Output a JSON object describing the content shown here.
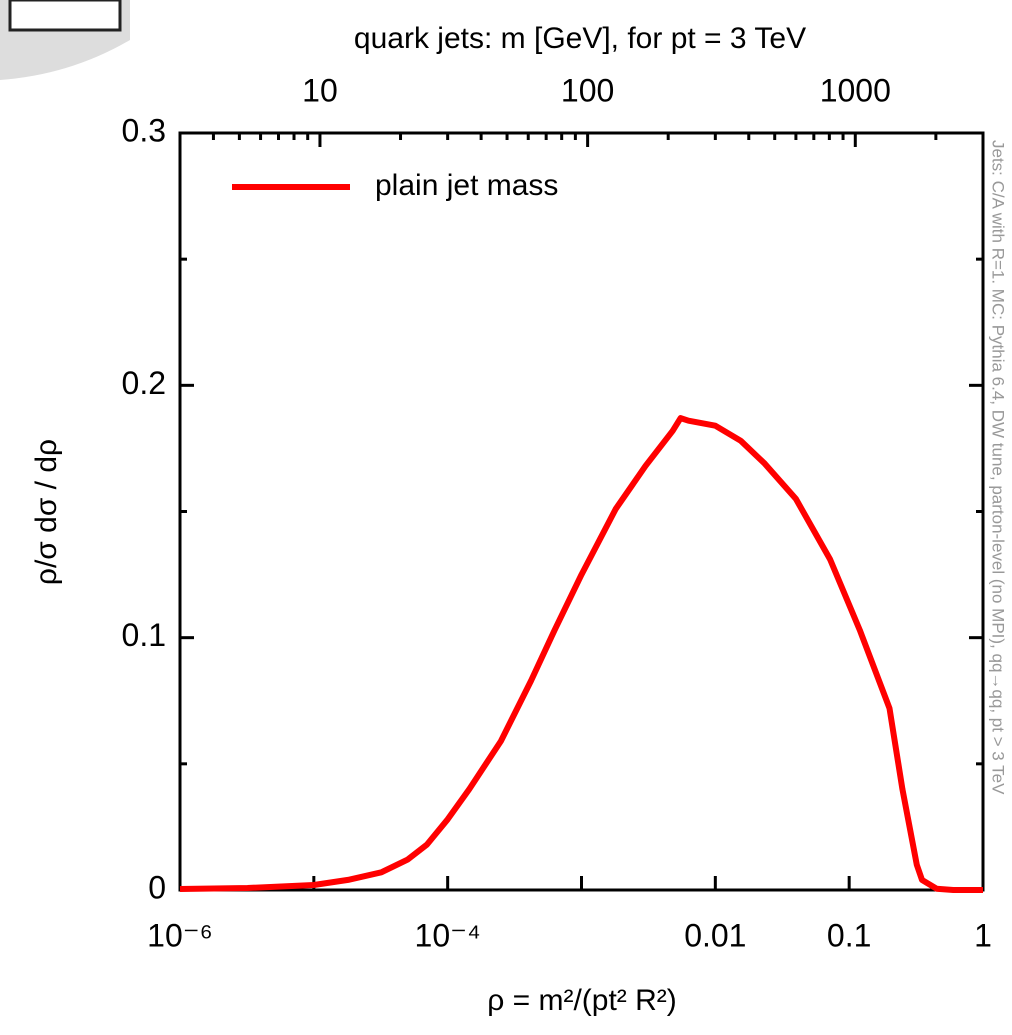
{
  "chart_data": {
    "type": "line",
    "x2label": "quark jets: m [GeV], for pt = 3 TeV",
    "xlabel": "ρ = m²/(pt² R²)",
    "ylabel": "ρ/σ dσ / dρ",
    "annotation": "Jets: C/A with R=1. MC: Pythia 6.4, DW tune, parton-level (no MPI), qq→qq, pt > 3 TeV",
    "x": [
      1e-06,
      3.2e-06,
      1e-05,
      1.8e-05,
      3.2e-05,
      5e-05,
      7e-05,
      0.0001,
      0.000145,
      0.00025,
      0.00042,
      0.00063,
      0.001,
      0.0018,
      0.003,
      0.0048,
      0.0055,
      0.0063,
      0.01,
      0.0155,
      0.0234,
      0.04,
      0.072,
      0.12,
      0.2,
      0.25,
      0.32,
      0.35,
      0.45,
      0.6,
      1
    ],
    "series": [
      {
        "name": "plain jet mass",
        "color": "#ff0000",
        "values": [
          0.0004,
          0.0008,
          0.002,
          0.004,
          0.007,
          0.012,
          0.018,
          0.028,
          0.04,
          0.059,
          0.083,
          0.103,
          0.125,
          0.151,
          0.168,
          0.182,
          0.187,
          0.186,
          0.184,
          0.178,
          0.169,
          0.155,
          0.131,
          0.103,
          0.072,
          0.04,
          0.01,
          0.004,
          0.0005,
          0,
          0
        ]
      }
    ],
    "xscale": "log",
    "xlim": [
      1e-06,
      1
    ],
    "xticks": [
      {
        "value": 1e-06,
        "label": "10⁻⁶"
      },
      {
        "value": 0.0001,
        "label": "10⁻⁴"
      },
      0.01,
      0.1,
      1
    ],
    "xminorticks": [
      1e-05,
      0.001
    ],
    "x2scale": "log",
    "x2lim": [
      3,
      3000
    ],
    "x2ticks": [
      10,
      100,
      1000
    ],
    "x2minorticks": [
      4,
      5,
      6,
      7,
      8,
      9,
      20,
      30,
      40,
      50,
      60,
      70,
      80,
      90,
      200,
      300,
      400,
      500,
      600,
      700,
      800,
      900,
      2000,
      3000
    ],
    "ylim": [
      0,
      0.3
    ],
    "yticks": [
      0,
      0.1,
      0.2,
      0.3
    ],
    "yminorticks": [
      0.05,
      0.15,
      0.25
    ],
    "legend": "top-left"
  }
}
